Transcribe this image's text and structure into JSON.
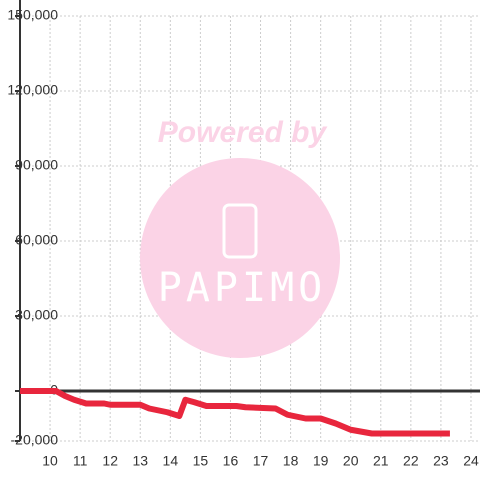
{
  "chart_data": {
    "type": "line",
    "watermark": {
      "text": "Powered by",
      "logo": "PAPIMO"
    },
    "x": [
      9,
      10.2,
      10.5,
      10.8,
      11.2,
      11.8,
      12,
      13,
      13.3,
      13.9,
      14.3,
      14.5,
      14.8,
      15.2,
      16.2,
      16.5,
      17.5,
      17.9,
      18.5,
      19,
      19.5,
      20,
      20.7,
      21,
      23.3
    ],
    "series": [
      {
        "name": "value",
        "color": "#e8263d",
        "values": [
          0,
          0,
          -2000,
          -3500,
          -5000,
          -5000,
          -5500,
          -5500,
          -7000,
          -8500,
          -10000,
          -3500,
          -4500,
          -6000,
          -6000,
          -6500,
          -7000,
          -9500,
          -11000,
          -11000,
          -13000,
          -15500,
          -17000,
          -17000,
          -17000
        ]
      }
    ],
    "xlim": [
      9,
      24.3
    ],
    "xticks": [
      10,
      11,
      12,
      13,
      14,
      15,
      16,
      17,
      18,
      19,
      20,
      21,
      22,
      23,
      24
    ],
    "ylim": [
      -20000,
      150000
    ],
    "yticks": [
      {
        "value": -20000,
        "label": "-20,000"
      },
      0,
      {
        "value": 30000,
        "label": "30,000"
      },
      {
        "value": 60000,
        "label": "60,000"
      },
      {
        "value": 90000,
        "label": "90,000"
      },
      {
        "value": 120000,
        "label": "120,000"
      },
      {
        "value": 150000,
        "label": "150,000"
      }
    ],
    "grid": true
  }
}
